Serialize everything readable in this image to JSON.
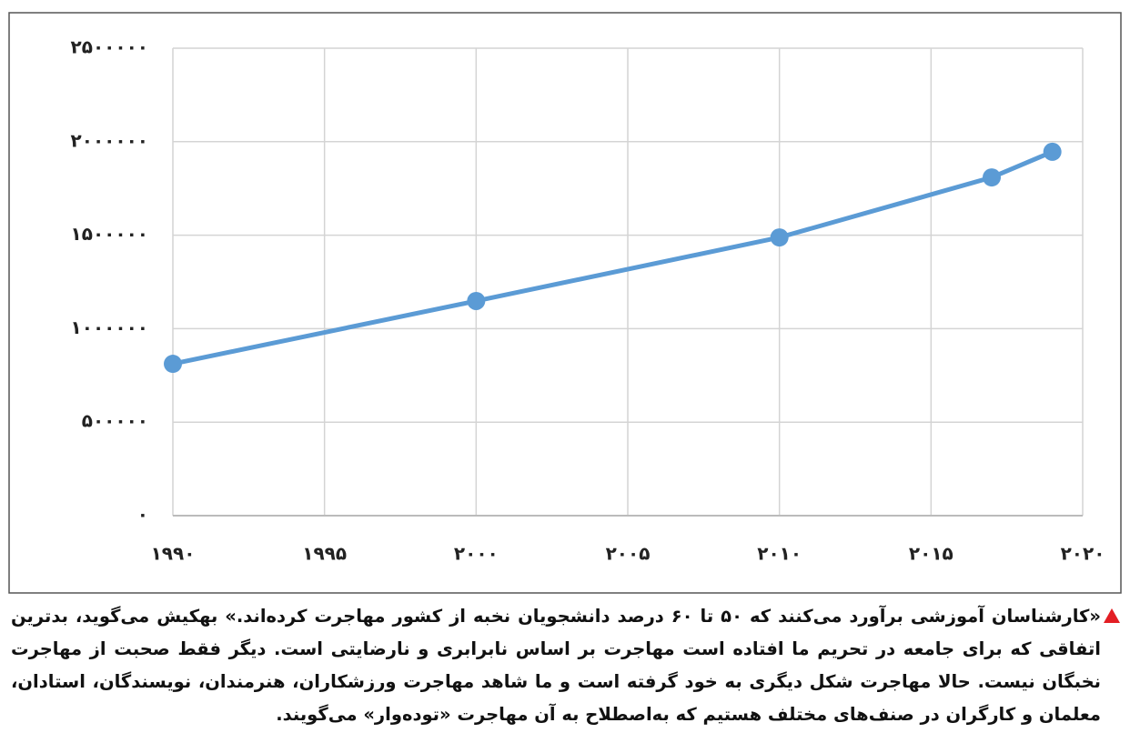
{
  "chart_data": {
    "type": "line",
    "x": [
      1990,
      2000,
      2010,
      2017,
      2019
    ],
    "values": [
      812000,
      1148000,
      1488000,
      1809000,
      1946000
    ],
    "color": "#5b9bd5",
    "xlim": [
      1990,
      2020
    ],
    "xticks": [
      {
        "value": 1990,
        "label": "۱۹۹۰"
      },
      {
        "value": 1995,
        "label": "۱۹۹۵"
      },
      {
        "value": 2000,
        "label": "۲۰۰۰"
      },
      {
        "value": 2005,
        "label": "۲۰۰۵"
      },
      {
        "value": 2010,
        "label": "۲۰۱۰"
      },
      {
        "value": 2015,
        "label": "۲۰۱۵"
      },
      {
        "value": 2020,
        "label": "۲۰۲۰"
      }
    ],
    "ylim": [
      0,
      2500000
    ],
    "yticks": [
      {
        "value": 0,
        "label": "۰"
      },
      {
        "value": 500000,
        "label": "۵۰۰۰۰۰"
      },
      {
        "value": 1000000,
        "label": "۱۰۰۰۰۰۰"
      },
      {
        "value": 1500000,
        "label": "۱۵۰۰۰۰۰"
      },
      {
        "value": 2000000,
        "label": "۲۰۰۰۰۰۰"
      },
      {
        "value": 2500000,
        "label": "۲۵۰۰۰۰۰"
      }
    ],
    "grid": true
  },
  "caption": "«کارشناسان آموزشی برآورد می‌کنند که ۵۰ تا ۶۰ درصد دانشجویان نخبه از کشور مهاجرت کرده‌اند.» بهکیش می‌گوید، بدترین اتفاقی که برای جامعه در تحریم ما افتاده است مهاجرت بر اساس نابرابری و نارضایتی است. دیگر فقط صحبت از مهاجرت نخبگان نیست. حالا مهاجرت شکل دیگری به خود گرفته است و ما شاهد مهاجرت ورزشکاران، هنرمندان، نویسندگان، استادان، معلمان و کارگران در صنف‌های مختلف هستیم که به‌اصطلاح به آن مهاجرت «توده‌وار» می‌گویند."
}
